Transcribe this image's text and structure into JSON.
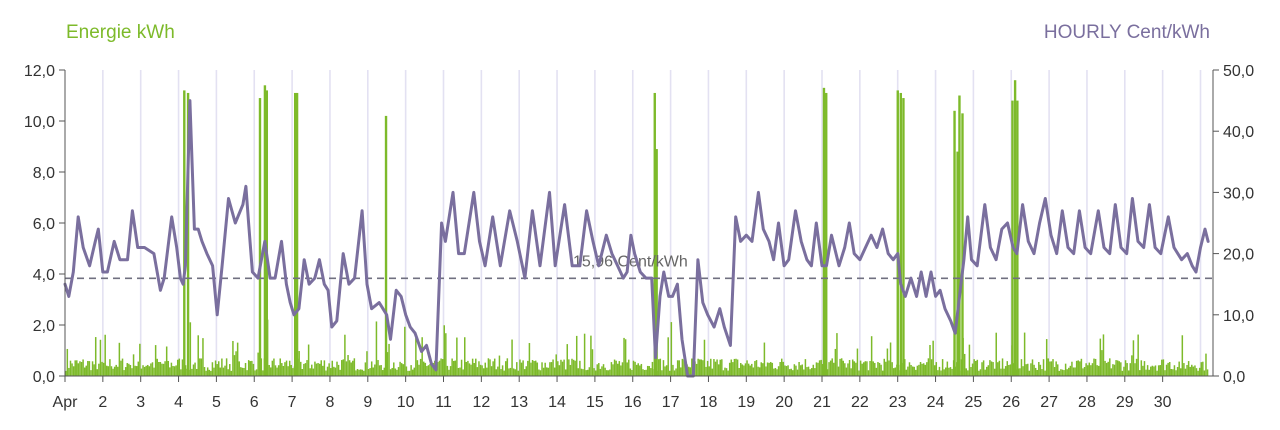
{
  "chart_data": {
    "type": "bar+line",
    "left_axis_title": "Energie kWh",
    "right_axis_title": "HOURLY Cent/kWh",
    "left_axis": {
      "min": 0,
      "max": 12,
      "ticks": [
        "0,0",
        "2,0",
        "4,0",
        "6,0",
        "8,0",
        "10,0",
        "12,0"
      ]
    },
    "right_axis": {
      "min": 0,
      "max": 50,
      "ticks": [
        "0,0",
        "10,0",
        "20,0",
        "30,0",
        "40,0",
        "50,0"
      ]
    },
    "x_axis": {
      "min": 1,
      "max": 31,
      "labels": [
        "Apr",
        "2",
        "3",
        "4",
        "5",
        "6",
        "7",
        "8",
        "9",
        "10",
        "11",
        "12",
        "13",
        "14",
        "15",
        "16",
        "17",
        "18",
        "19",
        "20",
        "21",
        "22",
        "23",
        "24",
        "25",
        "26",
        "27",
        "28",
        "29",
        "30"
      ]
    },
    "reference_line": {
      "value": 15.96,
      "label": "15,96 Cent/kWh",
      "axis": "right"
    },
    "energy_kwh_spikes": [
      {
        "day": 4.12,
        "value": 11.2
      },
      {
        "day": 4.22,
        "value": 11.1
      },
      {
        "day": 6.12,
        "value": 10.9
      },
      {
        "day": 6.25,
        "value": 11.4
      },
      {
        "day": 6.3,
        "value": 11.2
      },
      {
        "day": 7.05,
        "value": 11.1
      },
      {
        "day": 7.1,
        "value": 11.1
      },
      {
        "day": 9.45,
        "value": 10.2
      },
      {
        "day": 16.55,
        "value": 11.1
      },
      {
        "day": 16.6,
        "value": 8.9
      },
      {
        "day": 21.02,
        "value": 11.3
      },
      {
        "day": 21.08,
        "value": 11.1
      },
      {
        "day": 22.97,
        "value": 11.2
      },
      {
        "day": 23.05,
        "value": 11.1
      },
      {
        "day": 23.12,
        "value": 10.9
      },
      {
        "day": 24.47,
        "value": 10.4
      },
      {
        "day": 24.55,
        "value": 8.8
      },
      {
        "day": 24.6,
        "value": 11.0
      },
      {
        "day": 24.68,
        "value": 10.3
      },
      {
        "day": 26.0,
        "value": 10.8
      },
      {
        "day": 26.07,
        "value": 11.6
      },
      {
        "day": 26.13,
        "value": 10.8
      }
    ],
    "hourly_price_series": [
      [
        1.0,
        15
      ],
      [
        1.1,
        13
      ],
      [
        1.22,
        17
      ],
      [
        1.35,
        26
      ],
      [
        1.48,
        21
      ],
      [
        1.65,
        18
      ],
      [
        1.8,
        22
      ],
      [
        1.88,
        24
      ],
      [
        2.0,
        17
      ],
      [
        2.12,
        17
      ],
      [
        2.3,
        22
      ],
      [
        2.45,
        19
      ],
      [
        2.65,
        19
      ],
      [
        2.78,
        27
      ],
      [
        2.92,
        21
      ],
      [
        3.1,
        21
      ],
      [
        3.35,
        20
      ],
      [
        3.52,
        14
      ],
      [
        3.62,
        16
      ],
      [
        3.82,
        26
      ],
      [
        3.95,
        21
      ],
      [
        4.05,
        16
      ],
      [
        4.12,
        15
      ],
      [
        4.18,
        18
      ],
      [
        4.3,
        45
      ],
      [
        4.42,
        24
      ],
      [
        4.52,
        24
      ],
      [
        4.62,
        22
      ],
      [
        4.75,
        20
      ],
      [
        4.9,
        18
      ],
      [
        5.02,
        10
      ],
      [
        5.15,
        18
      ],
      [
        5.32,
        29
      ],
      [
        5.5,
        25
      ],
      [
        5.7,
        28
      ],
      [
        5.78,
        31
      ],
      [
        5.85,
        25
      ],
      [
        5.95,
        17
      ],
      [
        6.1,
        16
      ],
      [
        6.28,
        22
      ],
      [
        6.42,
        16
      ],
      [
        6.55,
        16
      ],
      [
        6.72,
        22
      ],
      [
        6.85,
        15
      ],
      [
        6.95,
        12
      ],
      [
        7.05,
        10
      ],
      [
        7.18,
        11
      ],
      [
        7.32,
        19
      ],
      [
        7.45,
        15
      ],
      [
        7.6,
        16
      ],
      [
        7.72,
        19
      ],
      [
        7.85,
        15
      ],
      [
        7.95,
        14
      ],
      [
        8.05,
        8
      ],
      [
        8.18,
        9
      ],
      [
        8.35,
        20
      ],
      [
        8.5,
        15
      ],
      [
        8.65,
        16
      ],
      [
        8.85,
        27
      ],
      [
        8.98,
        15
      ],
      [
        9.1,
        11
      ],
      [
        9.3,
        12
      ],
      [
        9.5,
        10
      ],
      [
        9.6,
        6
      ],
      [
        9.75,
        14
      ],
      [
        9.88,
        13
      ],
      [
        10.0,
        10
      ],
      [
        10.12,
        8
      ],
      [
        10.25,
        7
      ],
      [
        10.42,
        4
      ],
      [
        10.55,
        5
      ],
      [
        10.68,
        2
      ],
      [
        10.8,
        1
      ],
      [
        10.95,
        25
      ],
      [
        11.05,
        22
      ],
      [
        11.25,
        30
      ],
      [
        11.4,
        20
      ],
      [
        11.55,
        20
      ],
      [
        11.8,
        30
      ],
      [
        11.95,
        22
      ],
      [
        12.1,
        18
      ],
      [
        12.3,
        26
      ],
      [
        12.5,
        18
      ],
      [
        12.75,
        27
      ],
      [
        12.95,
        22
      ],
      [
        13.15,
        16
      ],
      [
        13.35,
        27
      ],
      [
        13.55,
        18
      ],
      [
        13.8,
        30
      ],
      [
        13.95,
        18
      ],
      [
        14.2,
        28
      ],
      [
        14.4,
        18
      ],
      [
        14.6,
        18
      ],
      [
        14.78,
        27
      ],
      [
        14.95,
        22
      ],
      [
        15.1,
        18
      ],
      [
        15.3,
        23
      ],
      [
        15.45,
        20
      ],
      [
        15.6,
        18
      ],
      [
        15.75,
        16
      ],
      [
        15.85,
        17
      ],
      [
        15.95,
        23
      ],
      [
        16.05,
        20
      ],
      [
        16.2,
        17
      ],
      [
        16.35,
        16
      ],
      [
        16.5,
        16
      ],
      [
        16.6,
        3
      ],
      [
        16.72,
        13
      ],
      [
        16.82,
        17
      ],
      [
        16.95,
        13
      ],
      [
        17.05,
        13
      ],
      [
        17.18,
        15
      ],
      [
        17.3,
        6
      ],
      [
        17.45,
        0
      ],
      [
        17.6,
        0
      ],
      [
        17.72,
        19
      ],
      [
        17.85,
        12
      ],
      [
        17.98,
        10
      ],
      [
        18.15,
        8
      ],
      [
        18.3,
        11
      ],
      [
        18.42,
        8
      ],
      [
        18.58,
        5
      ],
      [
        18.72,
        26
      ],
      [
        18.85,
        22
      ],
      [
        19.0,
        23
      ],
      [
        19.15,
        22
      ],
      [
        19.32,
        30
      ],
      [
        19.45,
        24
      ],
      [
        19.6,
        22
      ],
      [
        19.72,
        19
      ],
      [
        19.85,
        25
      ],
      [
        20.0,
        18
      ],
      [
        20.12,
        19
      ],
      [
        20.3,
        27
      ],
      [
        20.45,
        22
      ],
      [
        20.6,
        19
      ],
      [
        20.72,
        18
      ],
      [
        20.85,
        25
      ],
      [
        21.0,
        18
      ],
      [
        21.12,
        18
      ],
      [
        21.25,
        23
      ],
      [
        21.45,
        18
      ],
      [
        21.6,
        21
      ],
      [
        21.72,
        25
      ],
      [
        21.85,
        20
      ],
      [
        22.0,
        19
      ],
      [
        22.15,
        21
      ],
      [
        22.3,
        23
      ],
      [
        22.45,
        21
      ],
      [
        22.6,
        24
      ],
      [
        22.75,
        20
      ],
      [
        22.88,
        19
      ],
      [
        23.0,
        20
      ],
      [
        23.08,
        15
      ],
      [
        23.2,
        13
      ],
      [
        23.35,
        16
      ],
      [
        23.5,
        13
      ],
      [
        23.62,
        17
      ],
      [
        23.75,
        13
      ],
      [
        23.88,
        17
      ],
      [
        24.0,
        13
      ],
      [
        24.12,
        14
      ],
      [
        24.25,
        11
      ],
      [
        24.4,
        9
      ],
      [
        24.52,
        7
      ],
      [
        24.65,
        14
      ],
      [
        24.75,
        19
      ],
      [
        24.85,
        26
      ],
      [
        24.95,
        19
      ],
      [
        25.1,
        18
      ],
      [
        25.3,
        28
      ],
      [
        25.45,
        21
      ],
      [
        25.6,
        19
      ],
      [
        25.75,
        24
      ],
      [
        25.9,
        25
      ],
      [
        26.05,
        21
      ],
      [
        26.15,
        20
      ],
      [
        26.3,
        28
      ],
      [
        26.45,
        22
      ],
      [
        26.6,
        20
      ],
      [
        26.75,
        25
      ],
      [
        26.9,
        29
      ],
      [
        27.05,
        23
      ],
      [
        27.2,
        20
      ],
      [
        27.35,
        27
      ],
      [
        27.5,
        21
      ],
      [
        27.65,
        20
      ],
      [
        27.8,
        27
      ],
      [
        27.95,
        21
      ],
      [
        28.1,
        20
      ],
      [
        28.3,
        27
      ],
      [
        28.45,
        21
      ],
      [
        28.6,
        20
      ],
      [
        28.75,
        28
      ],
      [
        28.9,
        21
      ],
      [
        29.05,
        20
      ],
      [
        29.2,
        29
      ],
      [
        29.35,
        22
      ],
      [
        29.5,
        21
      ],
      [
        29.65,
        28
      ],
      [
        29.8,
        21
      ],
      [
        29.95,
        20
      ],
      [
        30.15,
        26
      ],
      [
        30.3,
        21
      ],
      [
        30.5,
        19
      ],
      [
        30.65,
        20
      ],
      [
        30.78,
        18
      ],
      [
        30.88,
        17
      ],
      [
        31.0,
        21
      ],
      [
        31.12,
        24
      ],
      [
        31.2,
        22
      ]
    ],
    "grid": "vertical",
    "colors": {
      "energy": "#7DBA2A",
      "price": "#7A6F9E",
      "grid": "#E3E1F2",
      "reference": "#707080",
      "axis": "#555555"
    }
  }
}
